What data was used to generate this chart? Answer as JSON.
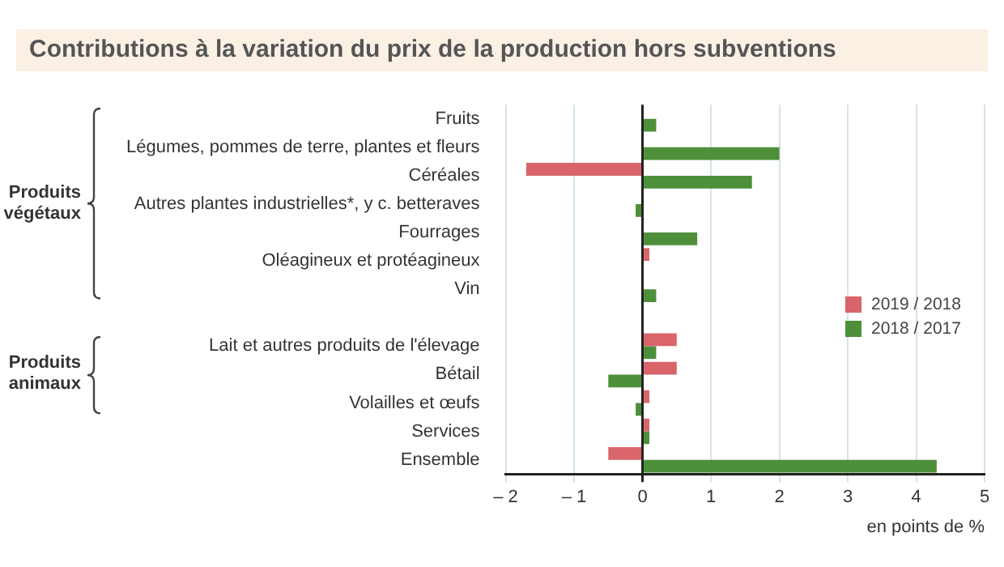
{
  "chart_data": {
    "type": "bar",
    "orientation": "horizontal",
    "title": "Contributions à la variation du prix de la production hors subventions",
    "xlabel": "en points de %",
    "categories": [
      "Fruits",
      "Légumes, pommes de terre, plantes et fleurs",
      "Céréales",
      "Autres plantes industrielles*, y c. betteraves",
      "Fourrages",
      "Oléagineux et protéagineux",
      "Vin",
      null,
      "Lait et autres produits de l'élevage",
      "Bétail",
      "Volailles et œufs",
      "Services",
      "Ensemble"
    ],
    "series": [
      {
        "name": "2019 / 2018",
        "color": "#d9646a",
        "values": [
          null,
          null,
          -1.7,
          null,
          null,
          0.1,
          null,
          null,
          0.5,
          0.5,
          0.1,
          0.1,
          -0.5
        ]
      },
      {
        "name": "2018 / 2017",
        "color": "#4e8f3a",
        "values": [
          0.2,
          2.0,
          1.6,
          -0.1,
          0.8,
          null,
          0.2,
          null,
          0.2,
          -0.5,
          -0.1,
          0.1,
          4.3
        ]
      }
    ],
    "xlim": [
      -2,
      5
    ],
    "xticks": [
      {
        "value": -2,
        "label": "– 2"
      },
      {
        "value": -1,
        "label": "– 1"
      },
      0,
      1,
      2,
      3,
      4,
      5
    ],
    "grid": "x",
    "legend": "right",
    "annotations": [
      "Produits végétaux",
      "Produits animaux"
    ]
  }
}
